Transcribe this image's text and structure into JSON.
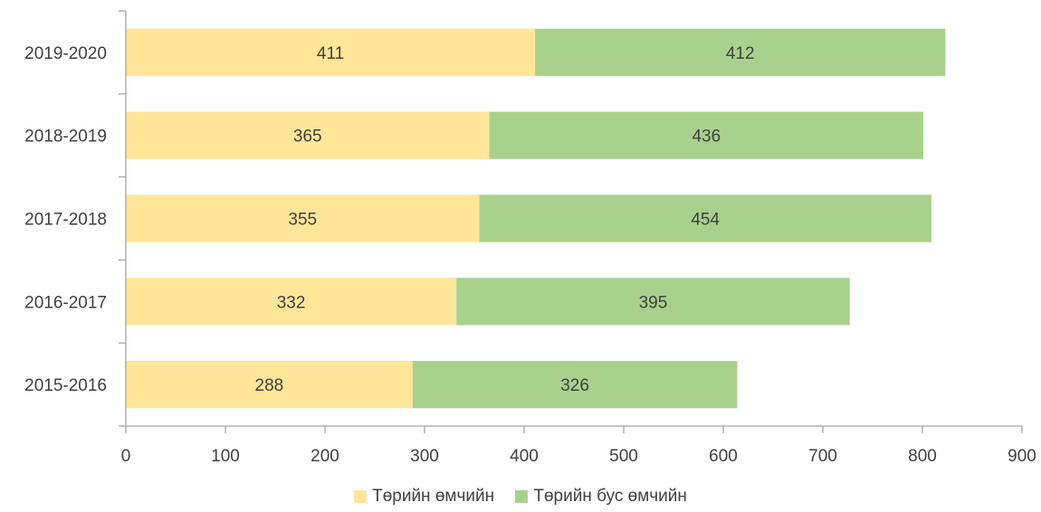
{
  "chart_data": {
    "type": "bar",
    "orientation": "horizontal",
    "stacked": true,
    "categories": [
      "2015-2016",
      "2016-2017",
      "2017-2018",
      "2018-2019",
      "2019-2020"
    ],
    "series": [
      {
        "name": "Төрийн өмчийн",
        "values": [
          288,
          332,
          355,
          365,
          411
        ],
        "color": "#FFE699"
      },
      {
        "name": "Төрийн бус өмчийн",
        "values": [
          326,
          395,
          454,
          436,
          412
        ],
        "color": "#A9D18E"
      }
    ],
    "xlim": [
      0,
      900
    ],
    "xticks": [
      0,
      100,
      200,
      300,
      400,
      500,
      600,
      700,
      800,
      900
    ],
    "grid": false,
    "legend_position": "bottom",
    "data_labels": true
  }
}
